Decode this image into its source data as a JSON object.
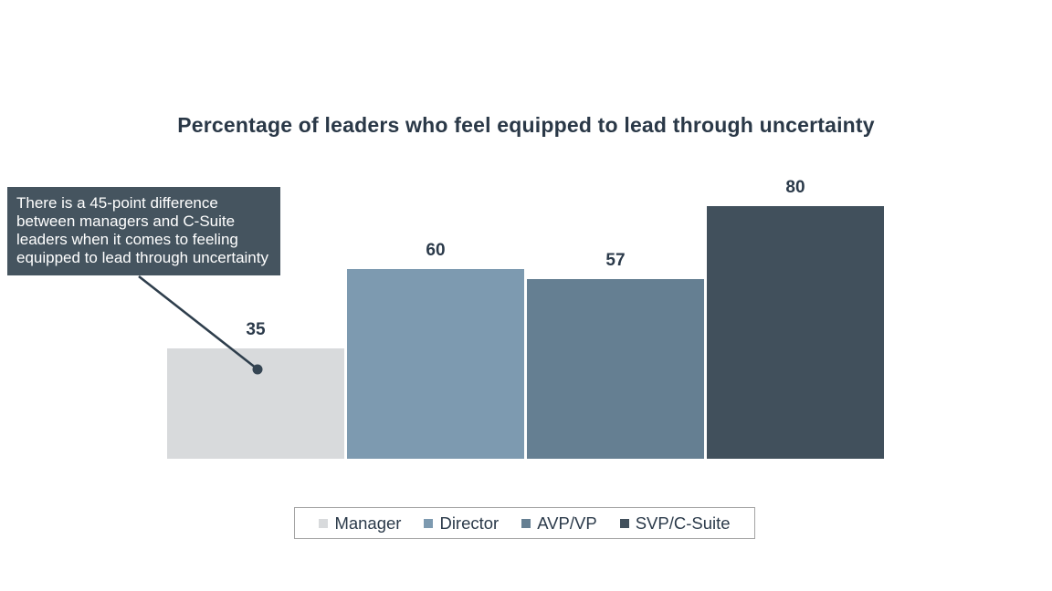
{
  "title": "Percentage of leaders who feel equipped to lead through uncertainty",
  "annotation": {
    "lines": [
      "There is a 45-point difference",
      "between managers and C-Suite",
      "leaders when it comes to feeling",
      "equipped to lead through uncertainty"
    ],
    "text": "There is a 45-point difference between managers and C-Suite leaders when it comes to feeling equipped to lead through uncertainty",
    "bg_color": "#45545f",
    "text_color": "#ffffff",
    "points_to": "Manager"
  },
  "chart_data": {
    "type": "bar",
    "categories": [
      "Manager",
      "Director",
      "AVP/VP",
      "SVP/C-Suite"
    ],
    "values": [
      35,
      60,
      57,
      80
    ],
    "colors": [
      "#d8dadc",
      "#7d9ab0",
      "#657f92",
      "#41505c"
    ],
    "title": "Percentage of leaders who feel equipped to lead through uncertainty",
    "xlabel": "",
    "ylabel": "",
    "ylim": [
      0,
      100
    ],
    "grid": false,
    "axes_visible": false,
    "data_labels_visible": true,
    "legend_position": "bottom"
  },
  "colors": {
    "title_text": "#2a3847",
    "value_label_text": "#2b3a4a",
    "leader_line": "#2e3e4c",
    "leader_dot": "#354553",
    "legend_border": "#a3a3a3",
    "background": "#ffffff"
  }
}
